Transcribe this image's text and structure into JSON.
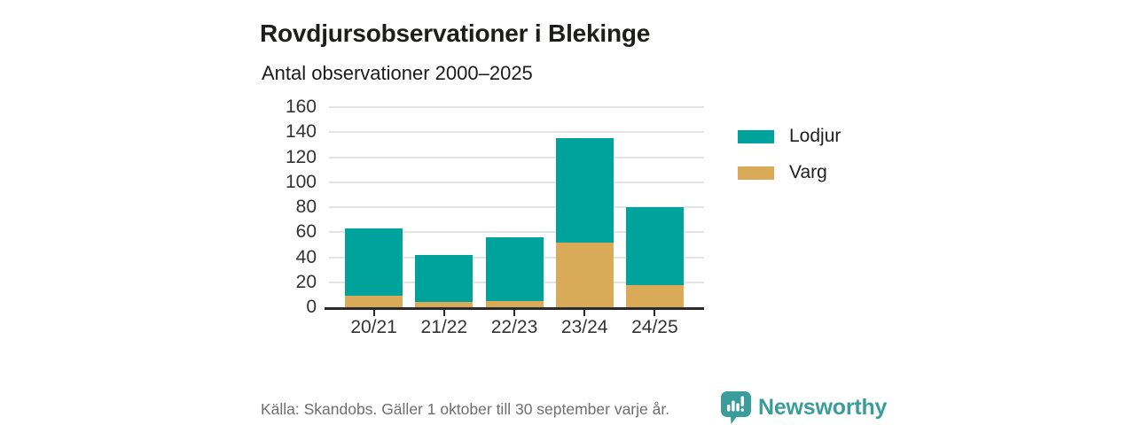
{
  "header": {
    "title": "Rovdjursobservationer i Blekinge",
    "subtitle": "Antal observationer 2000–2025"
  },
  "chart_data": {
    "type": "bar",
    "stacked": true,
    "title": "Antal observationer 2000–2025",
    "xlabel": "",
    "ylabel": "",
    "categories": [
      "20/21",
      "21/22",
      "22/23",
      "23/24",
      "24/25"
    ],
    "series": [
      {
        "name": "Lodjur",
        "color": "#00a39b",
        "values": [
          54,
          38,
          51,
          83,
          62
        ]
      },
      {
        "name": "Varg",
        "color": "#d9ab58",
        "values": [
          9,
          4,
          5,
          52,
          18
        ]
      }
    ],
    "totals": [
      63,
      42,
      56,
      135,
      80
    ],
    "ylim": [
      0,
      160
    ],
    "yticks": [
      0,
      20,
      40,
      60,
      80,
      100,
      120,
      140,
      160
    ],
    "grid": true,
    "legend_position": "right"
  },
  "footer": {
    "source": "Källa: Skandobs. Gäller 1 oktober till 30 september varje år.",
    "brand": "Newsworthy"
  },
  "colors": {
    "lodjur_teal": "#00a39b",
    "varg_gold": "#d9ab58",
    "brand_teal": "#3a9d99",
    "axis_line": "#2b2b2b",
    "gridline": "#e4e4e4",
    "tick_text": "#333333",
    "title_text": "#1d1d1b",
    "source_text": "#6e6e6e"
  },
  "icons": {
    "logo": "newsworthy-speech-bubble-bar-chart-icon"
  }
}
